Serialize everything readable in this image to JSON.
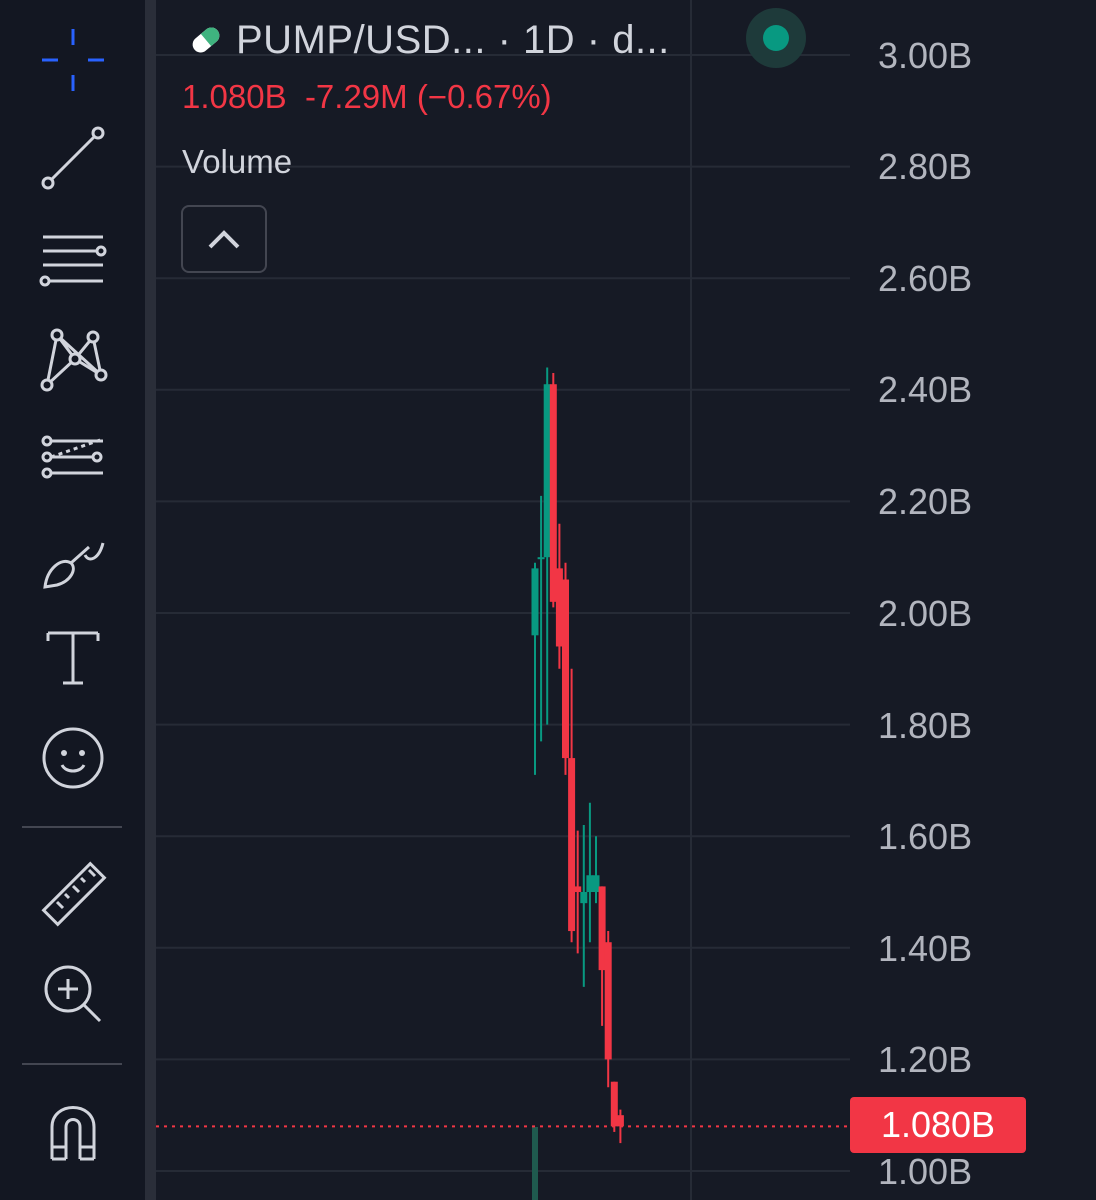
{
  "symbol": {
    "title": "PUMP/USD... · 1D · d...",
    "icon": "pill-icon",
    "status_icon": "market-status-dot",
    "status_color": "#089981"
  },
  "quote": {
    "last": "1.080B",
    "change": "-7.29M",
    "change_pct": "(−0.67%)"
  },
  "indicator": {
    "label": "Volume",
    "toggle_icon": "chevron-up-icon"
  },
  "toolbar": {
    "tools": [
      {
        "name": "crosshair-tool",
        "icon": "crosshair-icon"
      },
      {
        "name": "trend-line-tool",
        "icon": "trend-line-icon"
      },
      {
        "name": "horizontal-lines-tool",
        "icon": "parallel-lines-icon"
      },
      {
        "name": "pattern-tool",
        "icon": "xabcd-pattern-icon"
      },
      {
        "name": "forecast-tool",
        "icon": "forecast-lines-icon"
      },
      {
        "name": "brush-tool",
        "icon": "brush-icon"
      },
      {
        "name": "text-tool",
        "icon": "text-icon"
      },
      {
        "name": "emoji-tool",
        "icon": "smiley-icon"
      },
      {
        "name": "measure-tool",
        "icon": "ruler-icon"
      },
      {
        "name": "zoom-tool",
        "icon": "zoom-in-icon"
      },
      {
        "name": "magnet-tool",
        "icon": "magnet-icon"
      }
    ]
  },
  "colors": {
    "up": "#089981",
    "down": "#f23645",
    "background": "#161a25",
    "grid": "#262b36",
    "text": "#d1d4dc"
  },
  "price_axis": {
    "labels": [
      "3.00B",
      "2.80B",
      "2.60B",
      "2.40B",
      "2.20B",
      "2.00B",
      "1.80B",
      "1.60B",
      "1.40B",
      "1.20B",
      "1.00B"
    ],
    "last_price_label": "1.080B"
  },
  "chart_data": {
    "type": "candlestick",
    "unit": "B",
    "ylim": [
      0.98,
      3.05
    ],
    "last_price": 1.08,
    "candles": [
      {
        "o": 1.96,
        "h": 2.09,
        "l": 1.71,
        "c": 2.08,
        "dir": "up"
      },
      {
        "o": 2.1,
        "h": 2.21,
        "l": 1.77,
        "c": 2.1,
        "dir": "up"
      },
      {
        "o": 2.1,
        "h": 2.44,
        "l": 1.8,
        "c": 2.41,
        "dir": "up"
      },
      {
        "o": 2.41,
        "h": 2.43,
        "l": 2.01,
        "c": 2.02,
        "dir": "down"
      },
      {
        "o": 2.08,
        "h": 2.16,
        "l": 1.9,
        "c": 1.94,
        "dir": "down"
      },
      {
        "o": 2.06,
        "h": 2.09,
        "l": 1.71,
        "c": 1.74,
        "dir": "down"
      },
      {
        "o": 1.74,
        "h": 1.9,
        "l": 1.41,
        "c": 1.43,
        "dir": "down"
      },
      {
        "o": 1.51,
        "h": 1.61,
        "l": 1.39,
        "c": 1.5,
        "dir": "down"
      },
      {
        "o": 1.48,
        "h": 1.62,
        "l": 1.33,
        "c": 1.5,
        "dir": "up"
      },
      {
        "o": 1.5,
        "h": 1.66,
        "l": 1.41,
        "c": 1.53,
        "dir": "up"
      },
      {
        "o": 1.5,
        "h": 1.6,
        "l": 1.48,
        "c": 1.53,
        "dir": "up"
      },
      {
        "o": 1.51,
        "h": 1.51,
        "l": 1.26,
        "c": 1.36,
        "dir": "down"
      },
      {
        "o": 1.41,
        "h": 1.43,
        "l": 1.15,
        "c": 1.2,
        "dir": "down"
      },
      {
        "o": 1.16,
        "h": 1.16,
        "l": 1.07,
        "c": 1.08,
        "dir": "down"
      },
      {
        "o": 1.1,
        "h": 1.11,
        "l": 1.05,
        "c": 1.08,
        "dir": "down"
      }
    ]
  }
}
